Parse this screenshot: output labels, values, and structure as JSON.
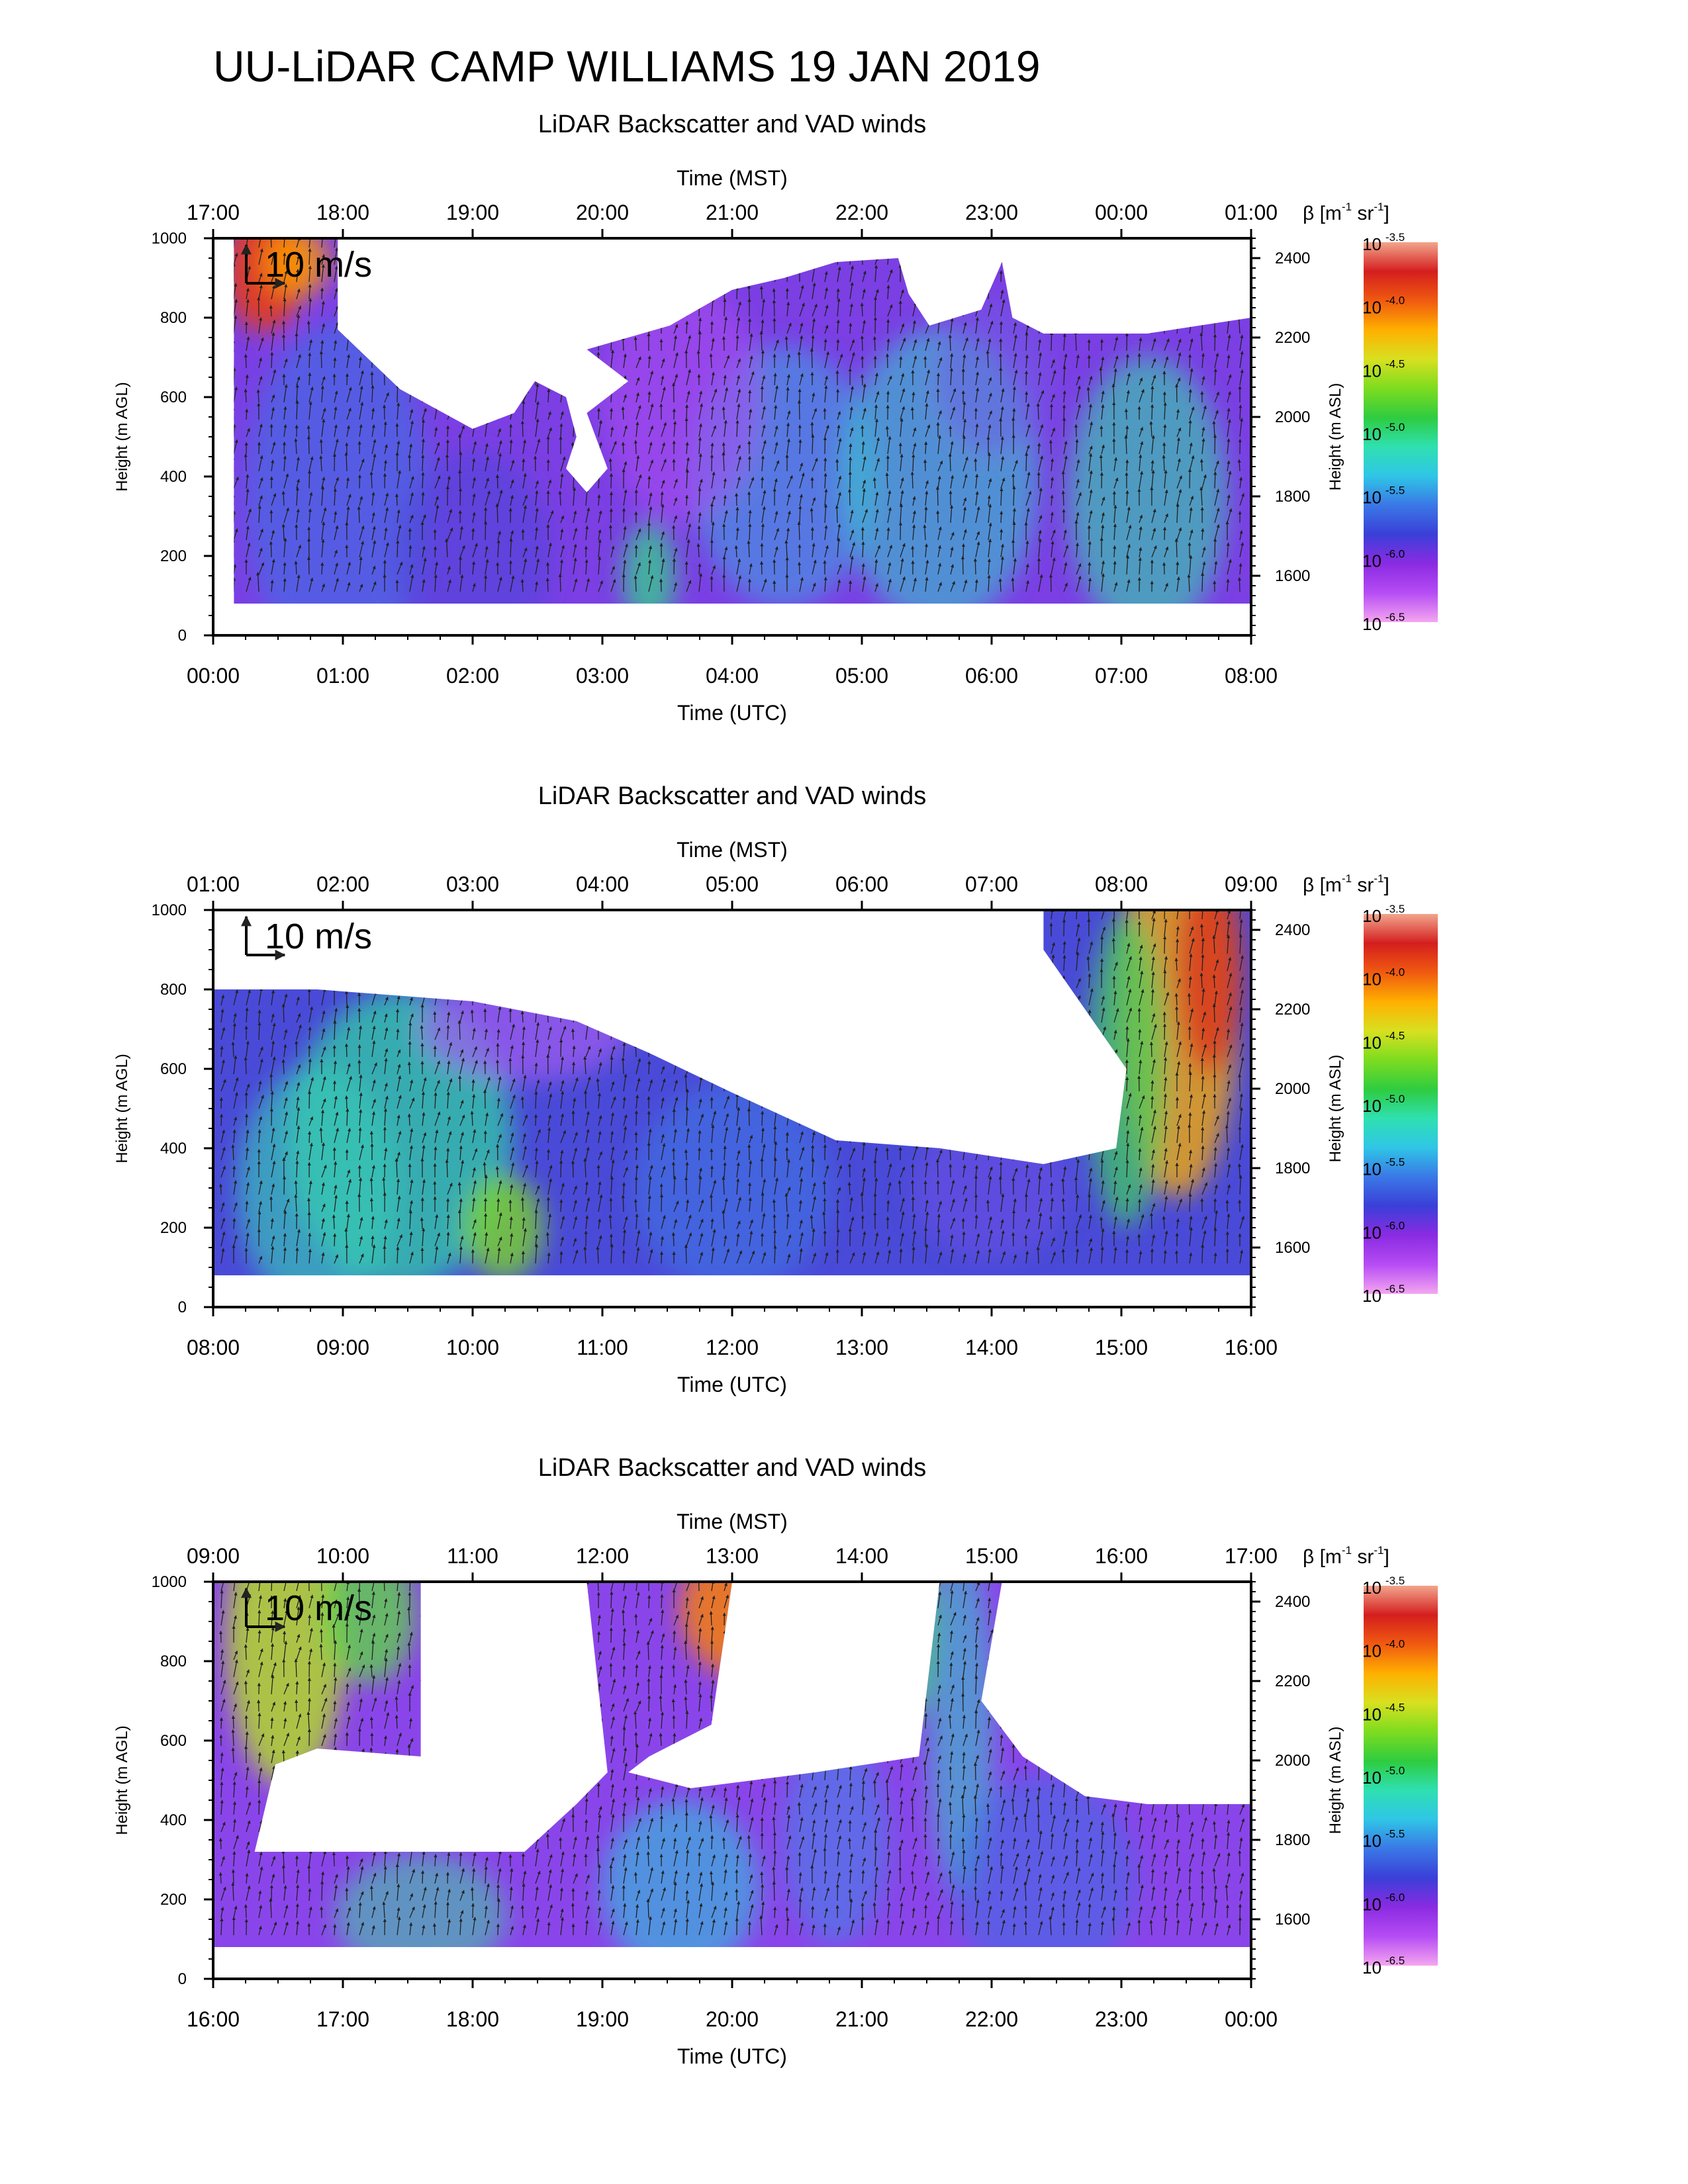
{
  "page": {
    "title": "UU-LiDAR CAMP WILLIAMS 19 JAN 2019"
  },
  "colors": {
    "colormap": [
      "#f4a6f0",
      "#b64cf4",
      "#8a2be2",
      "#3a3fd8",
      "#3a78e6",
      "#2fc6e6",
      "#2fe0b0",
      "#2ecc40",
      "#7ddc1f",
      "#d8e020",
      "#ffb000",
      "#f05a10",
      "#d41e1e",
      "#f2a58c"
    ],
    "arrow": "#222222"
  },
  "chart_data": [
    {
      "type": "heatmap",
      "title": "LiDAR Backscatter and VAD winds",
      "xlabel": "Time (UTC)",
      "x2label": "Time (MST)",
      "ylabel": "Height (m AGL)",
      "y2label": "Height (m ASL)",
      "x_ticks": [
        "00:00",
        "01:00",
        "02:00",
        "03:00",
        "04:00",
        "05:00",
        "06:00",
        "07:00",
        "08:00"
      ],
      "x2_ticks": [
        "17:00",
        "18:00",
        "19:00",
        "20:00",
        "21:00",
        "22:00",
        "23:00",
        "00:00",
        "01:00"
      ],
      "y_ticks": [
        "0",
        "200",
        "400",
        "600",
        "800",
        "1000"
      ],
      "y2_ticks": [
        "1600",
        "1800",
        "2000",
        "2200",
        "2400"
      ],
      "ylim": [
        0,
        1000
      ],
      "y2lim": [
        1450,
        2450
      ],
      "scale_label": "10 m/s",
      "colorbar": {
        "unit": "β [m",
        "unit_exp1": "-1",
        "unit_mid": " sr",
        "unit_exp2": "-1",
        "unit_end": "]",
        "ticks": [
          {
            "base": "10",
            "exp": "-3.5"
          },
          {
            "base": "10",
            "exp": "-4.0"
          },
          {
            "base": "10",
            "exp": "-4.5"
          },
          {
            "base": "10",
            "exp": "-5.0"
          },
          {
            "base": "10",
            "exp": "-5.5"
          },
          {
            "base": "10",
            "exp": "-6.0"
          },
          {
            "base": "10",
            "exp": "-6.5"
          }
        ]
      }
    },
    {
      "type": "heatmap",
      "title": "LiDAR Backscatter and VAD winds",
      "xlabel": "Time (UTC)",
      "x2label": "Time (MST)",
      "ylabel": "Height (m AGL)",
      "y2label": "Height (m ASL)",
      "x_ticks": [
        "08:00",
        "09:00",
        "10:00",
        "11:00",
        "12:00",
        "13:00",
        "14:00",
        "15:00",
        "16:00"
      ],
      "x2_ticks": [
        "01:00",
        "02:00",
        "03:00",
        "04:00",
        "05:00",
        "06:00",
        "07:00",
        "08:00",
        "09:00"
      ],
      "y_ticks": [
        "0",
        "200",
        "400",
        "600",
        "800",
        "1000"
      ],
      "y2_ticks": [
        "1600",
        "1800",
        "2000",
        "2200",
        "2400"
      ],
      "ylim": [
        0,
        1000
      ],
      "y2lim": [
        1450,
        2450
      ],
      "scale_label": "10 m/s",
      "colorbar": {
        "unit": "β [m",
        "unit_exp1": "-1",
        "unit_mid": " sr",
        "unit_exp2": "-1",
        "unit_end": "]",
        "ticks": [
          {
            "base": "10",
            "exp": "-3.5"
          },
          {
            "base": "10",
            "exp": "-4.0"
          },
          {
            "base": "10",
            "exp": "-4.5"
          },
          {
            "base": "10",
            "exp": "-5.0"
          },
          {
            "base": "10",
            "exp": "-5.5"
          },
          {
            "base": "10",
            "exp": "-6.0"
          },
          {
            "base": "10",
            "exp": "-6.5"
          }
        ]
      }
    },
    {
      "type": "heatmap",
      "title": "LiDAR Backscatter and VAD winds",
      "xlabel": "Time (UTC)",
      "x2label": "Time (MST)",
      "ylabel": "Height (m AGL)",
      "y2label": "Height (m ASL)",
      "x_ticks": [
        "16:00",
        "17:00",
        "18:00",
        "19:00",
        "20:00",
        "21:00",
        "22:00",
        "23:00",
        "00:00"
      ],
      "x2_ticks": [
        "09:00",
        "10:00",
        "11:00",
        "12:00",
        "13:00",
        "14:00",
        "15:00",
        "16:00",
        "17:00"
      ],
      "y_ticks": [
        "0",
        "200",
        "400",
        "600",
        "800",
        "1000"
      ],
      "y2_ticks": [
        "1600",
        "1800",
        "2000",
        "2200",
        "2400"
      ],
      "ylim": [
        0,
        1000
      ],
      "y2lim": [
        1450,
        2450
      ],
      "scale_label": "10 m/s",
      "colorbar": {
        "unit": "β [m",
        "unit_exp1": "-1",
        "unit_mid": " sr",
        "unit_exp2": "-1",
        "unit_end": "]",
        "ticks": [
          {
            "base": "10",
            "exp": "-3.5"
          },
          {
            "base": "10",
            "exp": "-4.0"
          },
          {
            "base": "10",
            "exp": "-4.5"
          },
          {
            "base": "10",
            "exp": "-5.0"
          },
          {
            "base": "10",
            "exp": "-5.5"
          },
          {
            "base": "10",
            "exp": "-6.0"
          },
          {
            "base": "10",
            "exp": "-6.5"
          }
        ]
      }
    }
  ]
}
